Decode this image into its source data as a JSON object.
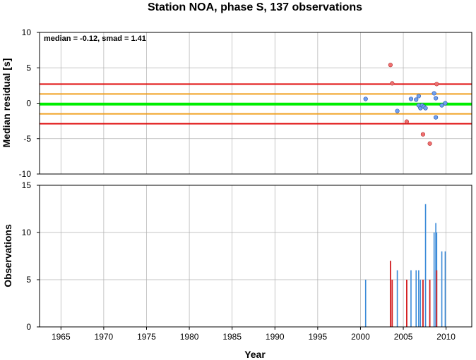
{
  "title": "Station NOA, phase S, 137 observations",
  "chart_data": [
    {
      "type": "scatter",
      "ylabel": "Median residual [s]",
      "annotation": "median = -0.12, smad = 1.41",
      "xlim": [
        1962.5,
        2013
      ],
      "ylim": [
        -10,
        10
      ],
      "yticks": [
        -10,
        -5,
        0,
        5,
        10
      ],
      "grid": true,
      "reference_lines": [
        {
          "y": 2.7,
          "color": "#e01010"
        },
        {
          "y": 1.3,
          "color": "#f0a020"
        },
        {
          "y": -0.12,
          "color": "#00ee00"
        },
        {
          "y": -1.5,
          "color": "#f0a020"
        },
        {
          "y": -2.9,
          "color": "#e01010"
        }
      ],
      "points_inlier": [
        {
          "x": 2000.6,
          "y": 0.6
        },
        {
          "x": 2004.3,
          "y": -1.1
        },
        {
          "x": 2005.9,
          "y": 0.6
        },
        {
          "x": 2006.5,
          "y": 0.5
        },
        {
          "x": 2006.8,
          "y": 1.0
        },
        {
          "x": 2006.8,
          "y": -0.3
        },
        {
          "x": 2007.0,
          "y": -0.7
        },
        {
          "x": 2007.2,
          "y": -0.3
        },
        {
          "x": 2007.4,
          "y": -0.5
        },
        {
          "x": 2007.6,
          "y": -0.7
        },
        {
          "x": 2008.6,
          "y": 1.4
        },
        {
          "x": 2008.8,
          "y": 0.7
        },
        {
          "x": 2008.8,
          "y": -2.0
        },
        {
          "x": 2009.5,
          "y": -0.3
        },
        {
          "x": 2009.9,
          "y": 0.0
        }
      ],
      "points_outlier": [
        {
          "x": 2003.5,
          "y": 5.4
        },
        {
          "x": 2003.7,
          "y": 2.8
        },
        {
          "x": 2005.4,
          "y": -2.6
        },
        {
          "x": 2007.3,
          "y": -4.4
        },
        {
          "x": 2008.1,
          "y": -5.7
        },
        {
          "x": 2008.9,
          "y": 2.7
        }
      ],
      "inlier_color": "#6fa0f0",
      "outlier_color": "#f07070"
    },
    {
      "type": "bar",
      "ylabel": "Observations",
      "xlabel": "Year",
      "xlim": [
        1962.5,
        2013
      ],
      "ylim": [
        0,
        15
      ],
      "xticks": [
        1965,
        1970,
        1975,
        1980,
        1985,
        1990,
        1995,
        2000,
        2005,
        2010
      ],
      "yticks": [
        0,
        5,
        10,
        15
      ],
      "grid": true,
      "bars": [
        {
          "x": 2000.6,
          "total": 5,
          "outliers": 0
        },
        {
          "x": 2003.5,
          "total": 7,
          "outliers": 7
        },
        {
          "x": 2003.7,
          "total": 5,
          "outliers": 5
        },
        {
          "x": 2004.3,
          "total": 6,
          "outliers": 0
        },
        {
          "x": 2005.4,
          "total": 5,
          "outliers": 5
        },
        {
          "x": 2005.9,
          "total": 6,
          "outliers": 0
        },
        {
          "x": 2006.5,
          "total": 6,
          "outliers": 0
        },
        {
          "x": 2006.8,
          "total": 6,
          "outliers": 0
        },
        {
          "x": 2007.0,
          "total": 5,
          "outliers": 0
        },
        {
          "x": 2007.3,
          "total": 5,
          "outliers": 5
        },
        {
          "x": 2007.6,
          "total": 13,
          "outliers": 0
        },
        {
          "x": 2008.1,
          "total": 5,
          "outliers": 5
        },
        {
          "x": 2008.6,
          "total": 10,
          "outliers": 0
        },
        {
          "x": 2008.8,
          "total": 11,
          "outliers": 0
        },
        {
          "x": 2008.9,
          "total": 10,
          "outliers": 6
        },
        {
          "x": 2009.5,
          "total": 8,
          "outliers": 0
        },
        {
          "x": 2009.9,
          "total": 8,
          "outliers": 0
        }
      ],
      "bar_color": "#3a8ad8",
      "outlier_bar_color": "#d82020"
    }
  ]
}
